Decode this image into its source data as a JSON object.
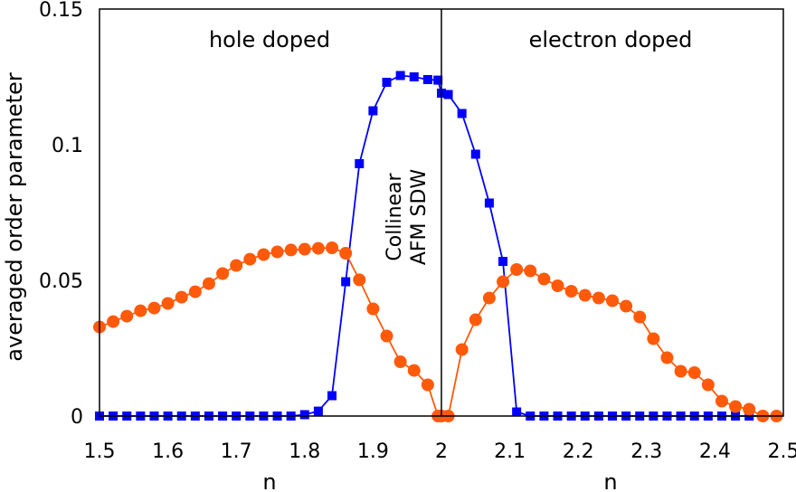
{
  "chart_data": {
    "type": "scatter",
    "xlabel": "n",
    "xlabel_secondary": "n",
    "ylabel": "averaged order parameter",
    "xlim": [
      1.5,
      2.5
    ],
    "ylim": [
      0,
      0.15
    ],
    "x_ticks": [
      1.5,
      1.6,
      1.7,
      1.8,
      1.9,
      2,
      2.1,
      2.2,
      2.3,
      2.4,
      2.5
    ],
    "y_ticks": [
      0,
      0.05,
      0.1,
      0.15
    ],
    "x_tick_labels": [
      "1.5",
      "1.6",
      "1.7",
      "1.8",
      "1.9",
      "2",
      "2.1",
      "2.2",
      "2.3",
      "2.4",
      "2.5"
    ],
    "y_tick_labels": [
      "0",
      "0.05",
      "0.1",
      "0.15"
    ],
    "grid": false,
    "divider_x": 2,
    "region_labels": {
      "left": "hole doped",
      "right": "electron doped"
    },
    "annotation": [
      "Collinear",
      "AFM SDW"
    ],
    "series": [
      {
        "color": "#0000ff",
        "marker": "square",
        "x": [
          1.5,
          1.52,
          1.54,
          1.56,
          1.58,
          1.6,
          1.62,
          1.64,
          1.66,
          1.68,
          1.7,
          1.72,
          1.74,
          1.76,
          1.78,
          1.8,
          1.82,
          1.84,
          1.86,
          1.88,
          1.9,
          1.92,
          1.94,
          1.96,
          1.98,
          1.995,
          2.0,
          2.01,
          2.03,
          2.05,
          2.07,
          2.09,
          2.11,
          2.13,
          2.15,
          2.17,
          2.19,
          2.21,
          2.23,
          2.25,
          2.27,
          2.29,
          2.31,
          2.33,
          2.35,
          2.37,
          2.39,
          2.41,
          2.43,
          2.45,
          2.47,
          2.49
        ],
        "y": [
          0,
          0,
          0,
          0,
          0,
          0,
          0,
          0,
          0,
          0,
          0,
          0,
          0,
          0,
          0,
          0.0005,
          0.0018,
          0.0075,
          0.0495,
          0.093,
          0.1125,
          0.123,
          0.1255,
          0.125,
          0.124,
          0.1238,
          0.119,
          0.1185,
          0.1115,
          0.0965,
          0.0785,
          0.057,
          0.0015,
          0,
          0,
          0,
          0,
          0,
          0,
          0,
          0,
          0,
          0,
          0,
          0,
          0,
          0,
          0,
          0,
          0,
          0,
          0
        ]
      },
      {
        "color": "#ff5a0a",
        "marker": "circle",
        "x": [
          1.5,
          1.52,
          1.54,
          1.56,
          1.58,
          1.6,
          1.62,
          1.64,
          1.66,
          1.68,
          1.7,
          1.72,
          1.74,
          1.76,
          1.78,
          1.8,
          1.82,
          1.84,
          1.86,
          1.88,
          1.9,
          1.92,
          1.94,
          1.96,
          1.98,
          1.995,
          2.0,
          2.01,
          2.03,
          2.05,
          2.07,
          2.09,
          2.11,
          2.13,
          2.15,
          2.17,
          2.19,
          2.21,
          2.23,
          2.25,
          2.27,
          2.29,
          2.31,
          2.33,
          2.35,
          2.37,
          2.39,
          2.41,
          2.43,
          2.45,
          2.47,
          2.49
        ],
        "y": [
          0.0328,
          0.0348,
          0.0368,
          0.0388,
          0.0398,
          0.0415,
          0.0438,
          0.0458,
          0.0488,
          0.0525,
          0.0555,
          0.0578,
          0.0595,
          0.0605,
          0.0612,
          0.0615,
          0.0618,
          0.062,
          0.06,
          0.0502,
          0.0395,
          0.0295,
          0.02,
          0.0168,
          0.0115,
          0,
          0,
          0,
          0.0245,
          0.0355,
          0.0435,
          0.0495,
          0.054,
          0.0535,
          0.0505,
          0.048,
          0.046,
          0.0445,
          0.0435,
          0.0425,
          0.0405,
          0.0365,
          0.0285,
          0.0215,
          0.0165,
          0.016,
          0.0115,
          0.0055,
          0.0035,
          0.0025,
          0,
          0
        ]
      }
    ]
  }
}
